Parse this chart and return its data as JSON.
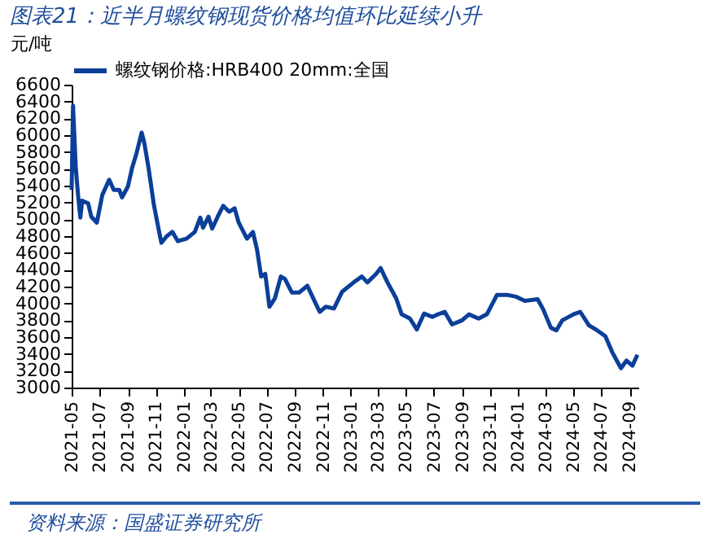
{
  "chart_data": {
    "type": "line",
    "title": "图表21：近半月螺纹钢现货价格均值环比延续小升",
    "ylabel": "元/吨",
    "annotations": [
      "资料来源：国盛证券研究所"
    ],
    "x": [
      "2021-05-01",
      "2021-05-04",
      "2021-05-10",
      "2021-05-15",
      "2021-05-20",
      "2021-05-24",
      "2021-06-06",
      "2021-06-13",
      "2021-06-25",
      "2021-07-07",
      "2021-07-22",
      "2021-08-01",
      "2021-08-13",
      "2021-08-19",
      "2021-09-01",
      "2021-09-10",
      "2021-09-19",
      "2021-10-01",
      "2021-10-07",
      "2021-10-16",
      "2021-10-28",
      "2021-11-10",
      "2021-11-13",
      "2021-11-25",
      "2021-12-07",
      "2021-12-19",
      "2022-01-07",
      "2022-01-25",
      "2022-02-06",
      "2022-02-12",
      "2022-02-24",
      "2022-03-04",
      "2022-03-16",
      "2022-03-28",
      "2022-04-10",
      "2022-04-22",
      "2022-05-01",
      "2022-05-19",
      "2022-06-01",
      "2022-06-10",
      "2022-06-19",
      "2022-06-28",
      "2022-07-07",
      "2022-07-19",
      "2022-08-01",
      "2022-08-10",
      "2022-08-25",
      "2022-09-10",
      "2022-09-28",
      "2022-10-16",
      "2022-10-25",
      "2022-11-07",
      "2022-11-25",
      "2022-12-13",
      "2023-01-07",
      "2023-01-25",
      "2023-02-06",
      "2023-02-25",
      "2023-03-07",
      "2023-03-22",
      "2023-04-10",
      "2023-04-22",
      "2023-05-10",
      "2023-05-25",
      "2023-06-10",
      "2023-06-28",
      "2023-07-10",
      "2023-07-25",
      "2023-08-10",
      "2023-09-01",
      "2023-09-16",
      "2023-10-07",
      "2023-10-25",
      "2023-11-16",
      "2023-12-10",
      "2023-12-28",
      "2024-01-16",
      "2024-02-13",
      "2024-02-25",
      "2024-03-13",
      "2024-03-25",
      "2024-04-07",
      "2024-05-01",
      "2024-05-16",
      "2024-06-04",
      "2024-06-22",
      "2024-07-10",
      "2024-07-25",
      "2024-08-13",
      "2024-08-25",
      "2024-09-07",
      "2024-09-18"
    ],
    "series": [
      {
        "name": "螺纹钢价格:HRB400 20mm:全国",
        "color": "#0b3f99",
        "values": [
          5350,
          6350,
          5610,
          5290,
          5020,
          5220,
          5190,
          5030,
          4960,
          5290,
          5470,
          5350,
          5350,
          5260,
          5390,
          5610,
          5770,
          6030,
          5900,
          5610,
          5160,
          4800,
          4720,
          4800,
          4850,
          4740,
          4770,
          4850,
          5020,
          4900,
          5030,
          4890,
          5030,
          5160,
          5090,
          5130,
          4960,
          4770,
          4850,
          4640,
          4320,
          4350,
          3960,
          4060,
          4320,
          4290,
          4130,
          4130,
          4210,
          4000,
          3900,
          3960,
          3940,
          4140,
          4250,
          4320,
          4250,
          4350,
          4420,
          4250,
          4060,
          3870,
          3820,
          3690,
          3880,
          3840,
          3870,
          3900,
          3750,
          3800,
          3870,
          3820,
          3870,
          4100,
          4100,
          4080,
          4030,
          4050,
          3930,
          3710,
          3680,
          3800,
          3870,
          3900,
          3740,
          3680,
          3610,
          3420,
          3230,
          3320,
          3260,
          3390
        ]
      }
    ],
    "xlim": [
      "2021-05-01",
      "2024-09-20"
    ],
    "xticks": [
      "2021-05",
      "2021-07",
      "2021-09",
      "2021-11",
      "2022-01",
      "2022-03",
      "2022-05",
      "2022-07",
      "2022-09",
      "2022-11",
      "2023-01",
      "2023-03",
      "2023-05",
      "2023-07",
      "2023-09",
      "2023-11",
      "2024-01",
      "2024-03",
      "2024-05",
      "2024-07",
      "2024-09"
    ],
    "ylim": [
      3000,
      6600
    ],
    "yticks": [
      3000,
      3200,
      3400,
      3600,
      3800,
      4000,
      4200,
      4400,
      4600,
      4800,
      5000,
      5200,
      5400,
      5600,
      5800,
      6000,
      6200,
      6400,
      6600
    ],
    "grid": false,
    "legend": "top",
    "marker": "none",
    "line_style": "solid"
  }
}
